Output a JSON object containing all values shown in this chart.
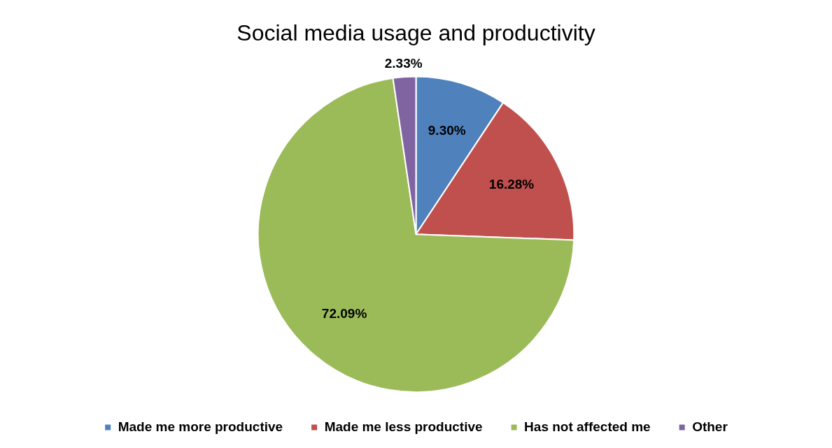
{
  "chart_data": {
    "type": "pie",
    "title": "Social media usage and productivity",
    "categories": [
      "Made me more productive",
      "Made me less productive",
      "Has not affected me",
      "Other"
    ],
    "values": [
      9.3,
      16.28,
      72.09,
      2.33
    ],
    "colors": [
      "#4f81bd",
      "#c0504d",
      "#9bbb59",
      "#8064a2"
    ],
    "value_labels": [
      "9.30%",
      "16.28%",
      "72.09%",
      "2.33%"
    ],
    "legend": "bottom"
  }
}
